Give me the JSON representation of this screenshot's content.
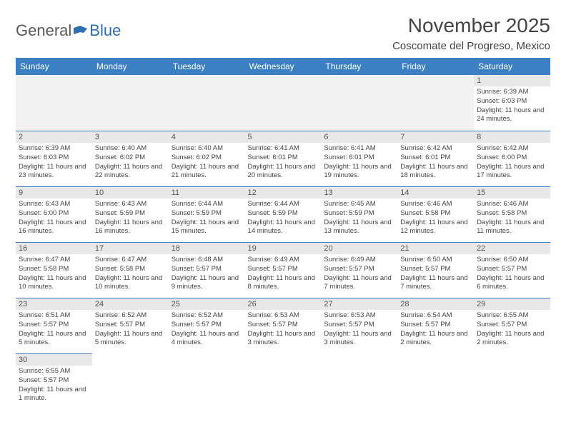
{
  "logo": {
    "text_gray": "General",
    "text_blue": "Blue"
  },
  "title": "November 2025",
  "location": "Coscomate del Progreso, Mexico",
  "colors": {
    "header_bg": "#3a80c3",
    "header_text": "#ffffff",
    "daynum_bg": "#e8e8e8",
    "cell_border": "#3a80c3",
    "logo_gray": "#5a5a5a",
    "logo_blue": "#2f6fb0"
  },
  "weekdays": [
    "Sunday",
    "Monday",
    "Tuesday",
    "Wednesday",
    "Thursday",
    "Friday",
    "Saturday"
  ],
  "weeks": [
    [
      null,
      null,
      null,
      null,
      null,
      null,
      {
        "n": "1",
        "sunrise": "Sunrise: 6:39 AM",
        "sunset": "Sunset: 6:03 PM",
        "daylight": "Daylight: 11 hours and 24 minutes."
      }
    ],
    [
      {
        "n": "2",
        "sunrise": "Sunrise: 6:39 AM",
        "sunset": "Sunset: 6:03 PM",
        "daylight": "Daylight: 11 hours and 23 minutes."
      },
      {
        "n": "3",
        "sunrise": "Sunrise: 6:40 AM",
        "sunset": "Sunset: 6:02 PM",
        "daylight": "Daylight: 11 hours and 22 minutes."
      },
      {
        "n": "4",
        "sunrise": "Sunrise: 6:40 AM",
        "sunset": "Sunset: 6:02 PM",
        "daylight": "Daylight: 11 hours and 21 minutes."
      },
      {
        "n": "5",
        "sunrise": "Sunrise: 6:41 AM",
        "sunset": "Sunset: 6:01 PM",
        "daylight": "Daylight: 11 hours and 20 minutes."
      },
      {
        "n": "6",
        "sunrise": "Sunrise: 6:41 AM",
        "sunset": "Sunset: 6:01 PM",
        "daylight": "Daylight: 11 hours and 19 minutes."
      },
      {
        "n": "7",
        "sunrise": "Sunrise: 6:42 AM",
        "sunset": "Sunset: 6:01 PM",
        "daylight": "Daylight: 11 hours and 18 minutes."
      },
      {
        "n": "8",
        "sunrise": "Sunrise: 6:42 AM",
        "sunset": "Sunset: 6:00 PM",
        "daylight": "Daylight: 11 hours and 17 minutes."
      }
    ],
    [
      {
        "n": "9",
        "sunrise": "Sunrise: 6:43 AM",
        "sunset": "Sunset: 6:00 PM",
        "daylight": "Daylight: 11 hours and 16 minutes."
      },
      {
        "n": "10",
        "sunrise": "Sunrise: 6:43 AM",
        "sunset": "Sunset: 5:59 PM",
        "daylight": "Daylight: 11 hours and 16 minutes."
      },
      {
        "n": "11",
        "sunrise": "Sunrise: 6:44 AM",
        "sunset": "Sunset: 5:59 PM",
        "daylight": "Daylight: 11 hours and 15 minutes."
      },
      {
        "n": "12",
        "sunrise": "Sunrise: 6:44 AM",
        "sunset": "Sunset: 5:59 PM",
        "daylight": "Daylight: 11 hours and 14 minutes."
      },
      {
        "n": "13",
        "sunrise": "Sunrise: 6:45 AM",
        "sunset": "Sunset: 5:59 PM",
        "daylight": "Daylight: 11 hours and 13 minutes."
      },
      {
        "n": "14",
        "sunrise": "Sunrise: 6:46 AM",
        "sunset": "Sunset: 5:58 PM",
        "daylight": "Daylight: 11 hours and 12 minutes."
      },
      {
        "n": "15",
        "sunrise": "Sunrise: 6:46 AM",
        "sunset": "Sunset: 5:58 PM",
        "daylight": "Daylight: 11 hours and 11 minutes."
      }
    ],
    [
      {
        "n": "16",
        "sunrise": "Sunrise: 6:47 AM",
        "sunset": "Sunset: 5:58 PM",
        "daylight": "Daylight: 11 hours and 10 minutes."
      },
      {
        "n": "17",
        "sunrise": "Sunrise: 6:47 AM",
        "sunset": "Sunset: 5:58 PM",
        "daylight": "Daylight: 11 hours and 10 minutes."
      },
      {
        "n": "18",
        "sunrise": "Sunrise: 6:48 AM",
        "sunset": "Sunset: 5:57 PM",
        "daylight": "Daylight: 11 hours and 9 minutes."
      },
      {
        "n": "19",
        "sunrise": "Sunrise: 6:49 AM",
        "sunset": "Sunset: 5:57 PM",
        "daylight": "Daylight: 11 hours and 8 minutes."
      },
      {
        "n": "20",
        "sunrise": "Sunrise: 6:49 AM",
        "sunset": "Sunset: 5:57 PM",
        "daylight": "Daylight: 11 hours and 7 minutes."
      },
      {
        "n": "21",
        "sunrise": "Sunrise: 6:50 AM",
        "sunset": "Sunset: 5:57 PM",
        "daylight": "Daylight: 11 hours and 7 minutes."
      },
      {
        "n": "22",
        "sunrise": "Sunrise: 6:50 AM",
        "sunset": "Sunset: 5:57 PM",
        "daylight": "Daylight: 11 hours and 6 minutes."
      }
    ],
    [
      {
        "n": "23",
        "sunrise": "Sunrise: 6:51 AM",
        "sunset": "Sunset: 5:57 PM",
        "daylight": "Daylight: 11 hours and 5 minutes."
      },
      {
        "n": "24",
        "sunrise": "Sunrise: 6:52 AM",
        "sunset": "Sunset: 5:57 PM",
        "daylight": "Daylight: 11 hours and 5 minutes."
      },
      {
        "n": "25",
        "sunrise": "Sunrise: 6:52 AM",
        "sunset": "Sunset: 5:57 PM",
        "daylight": "Daylight: 11 hours and 4 minutes."
      },
      {
        "n": "26",
        "sunrise": "Sunrise: 6:53 AM",
        "sunset": "Sunset: 5:57 PM",
        "daylight": "Daylight: 11 hours and 3 minutes."
      },
      {
        "n": "27",
        "sunrise": "Sunrise: 6:53 AM",
        "sunset": "Sunset: 5:57 PM",
        "daylight": "Daylight: 11 hours and 3 minutes."
      },
      {
        "n": "28",
        "sunrise": "Sunrise: 6:54 AM",
        "sunset": "Sunset: 5:57 PM",
        "daylight": "Daylight: 11 hours and 2 minutes."
      },
      {
        "n": "29",
        "sunrise": "Sunrise: 6:55 AM",
        "sunset": "Sunset: 5:57 PM",
        "daylight": "Daylight: 11 hours and 2 minutes."
      }
    ],
    [
      {
        "n": "30",
        "sunrise": "Sunrise: 6:55 AM",
        "sunset": "Sunset: 5:57 PM",
        "daylight": "Daylight: 11 hours and 1 minute."
      },
      null,
      null,
      null,
      null,
      null,
      null
    ]
  ]
}
